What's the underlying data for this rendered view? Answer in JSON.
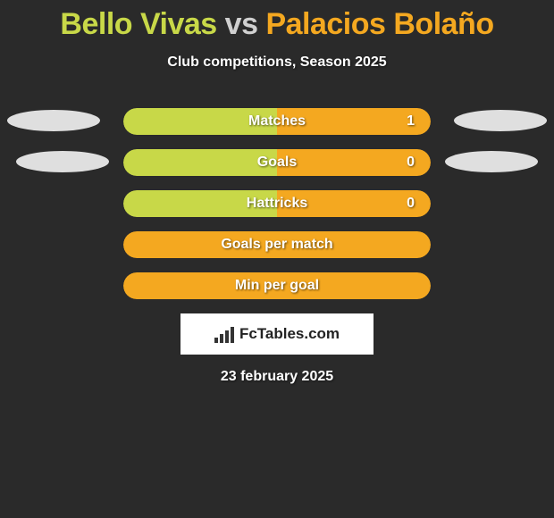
{
  "title": {
    "player1": "Bello Vivas",
    "vs": "vs",
    "player2": "Palacios Bolaño"
  },
  "subtitle": "Club competitions, Season 2025",
  "colors": {
    "player1": "#c8d848",
    "player2": "#f4a820",
    "background": "#2a2a2a",
    "ellipse": "#dfdfdf",
    "text": "#ffffff"
  },
  "stats": [
    {
      "label": "Matches",
      "left_value": "",
      "right_value": "1",
      "left_color": "#c8d848",
      "right_color": "#f4a820",
      "left_width": 50,
      "right_width": 50,
      "show_left_ellipse": true,
      "show_right_ellipse": true
    },
    {
      "label": "Goals",
      "left_value": "",
      "right_value": "0",
      "left_color": "#c8d848",
      "right_color": "#f4a820",
      "left_width": 50,
      "right_width": 50,
      "show_left_ellipse": true,
      "show_right_ellipse": true
    },
    {
      "label": "Hattricks",
      "left_value": "",
      "right_value": "0",
      "left_color": "#c8d848",
      "right_color": "#f4a820",
      "left_width": 50,
      "right_width": 50,
      "show_left_ellipse": false,
      "show_right_ellipse": false
    },
    {
      "label": "Goals per match",
      "left_value": "",
      "right_value": "",
      "full_color": "#f4a820",
      "full": true,
      "show_left_ellipse": false,
      "show_right_ellipse": false
    },
    {
      "label": "Min per goal",
      "left_value": "",
      "right_value": "",
      "full_color": "#f4a820",
      "full": true,
      "show_left_ellipse": false,
      "show_right_ellipse": false
    }
  ],
  "logo": {
    "text": "FcTables.com"
  },
  "date": "23 february 2025"
}
